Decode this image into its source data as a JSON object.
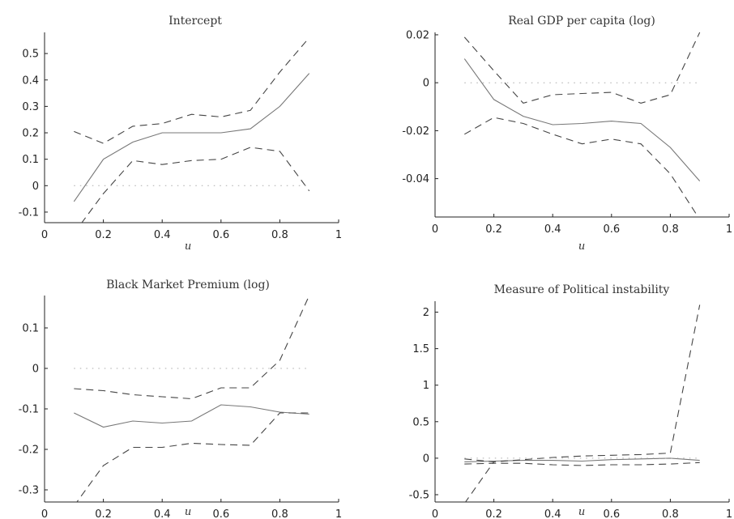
{
  "chart_data": [
    {
      "type": "line",
      "title": "Intercept",
      "xlabel": "u",
      "ylabel": "",
      "xlim": [
        0,
        1
      ],
      "ylim": [
        -0.14,
        0.58
      ],
      "xticks": [
        "0",
        "0.2",
        "0.4",
        "0.6",
        "0.8",
        "1"
      ],
      "yticks": [
        "-0.1",
        "0",
        "0.1",
        "0.2",
        "0.3",
        "0.4",
        "0.5"
      ],
      "x": [
        0.1,
        0.2,
        0.3,
        0.4,
        0.5,
        0.6,
        0.7,
        0.8,
        0.9
      ],
      "series": [
        {
          "style": "solid",
          "values": [
            -0.06,
            0.1,
            0.165,
            0.2,
            0.2,
            0.2,
            0.215,
            0.3,
            0.425
          ]
        },
        {
          "style": "dashed",
          "values": [
            0.205,
            0.16,
            0.225,
            0.235,
            0.27,
            0.26,
            0.285,
            0.43,
            0.56
          ]
        },
        {
          "style": "dashed",
          "values": [
            -0.18,
            -0.03,
            0.095,
            0.08,
            0.095,
            0.1,
            0.145,
            0.13,
            -0.02
          ]
        },
        {
          "style": "dotted",
          "values": [
            0,
            0,
            0,
            0,
            0,
            0,
            0,
            0,
            0
          ]
        }
      ]
    },
    {
      "type": "line",
      "title": "Real GDP per capita (log)",
      "xlabel": "u",
      "ylabel": "",
      "xlim": [
        0,
        1
      ],
      "ylim": [
        -0.056,
        0.021
      ],
      "xticks": [
        "0",
        "0.2",
        "0.4",
        "0.6",
        "0.8",
        "1"
      ],
      "yticks": [
        "-0.04",
        "-0.02",
        "0",
        "0.02"
      ],
      "x": [
        0.1,
        0.2,
        0.3,
        0.4,
        0.5,
        0.6,
        0.7,
        0.8,
        0.9
      ],
      "series": [
        {
          "style": "solid",
          "values": [
            0.01,
            -0.007,
            -0.014,
            -0.0175,
            -0.017,
            -0.016,
            -0.017,
            -0.027,
            -0.041
          ]
        },
        {
          "style": "dashed",
          "values": [
            0.019,
            0.005,
            -0.0085,
            -0.005,
            -0.0045,
            -0.004,
            -0.0085,
            -0.005,
            0.021
          ]
        },
        {
          "style": "dashed",
          "values": [
            -0.0215,
            -0.0145,
            -0.017,
            -0.0215,
            -0.0255,
            -0.0235,
            -0.0255,
            -0.038,
            -0.057
          ]
        },
        {
          "style": "dotted",
          "values": [
            0,
            0,
            0,
            0,
            0,
            0,
            0,
            0,
            0
          ]
        }
      ]
    },
    {
      "type": "line",
      "title": "Black Market Premium (log)",
      "xlabel": "u",
      "ylabel": "",
      "xlim": [
        0,
        1
      ],
      "ylim": [
        -0.33,
        0.18
      ],
      "xticks": [
        "0",
        "0.2",
        "0.4",
        "0.6",
        "0.8",
        "1"
      ],
      "yticks": [
        "-0.3",
        "-0.2",
        "-0.1",
        "0",
        "0.1"
      ],
      "x": [
        0.1,
        0.2,
        0.3,
        0.4,
        0.5,
        0.6,
        0.7,
        0.8,
        0.9
      ],
      "series": [
        {
          "style": "solid",
          "values": [
            -0.11,
            -0.145,
            -0.13,
            -0.135,
            -0.13,
            -0.09,
            -0.095,
            -0.108,
            -0.113
          ]
        },
        {
          "style": "dashed",
          "values": [
            -0.05,
            -0.055,
            -0.065,
            -0.07,
            -0.075,
            -0.048,
            -0.048,
            0.02,
            0.18
          ]
        },
        {
          "style": "dashed",
          "values": [
            -0.34,
            -0.24,
            -0.195,
            -0.195,
            -0.185,
            -0.188,
            -0.19,
            -0.11,
            -0.11
          ]
        },
        {
          "style": "dotted",
          "values": [
            0,
            0,
            0,
            0,
            0,
            0,
            0,
            0,
            0
          ]
        }
      ]
    },
    {
      "type": "line",
      "title": "Measure of Political instability",
      "xlabel": "u",
      "ylabel": "",
      "xlim": [
        0,
        1
      ],
      "ylim": [
        -0.6,
        2.15
      ],
      "xticks": [
        "0",
        "0.2",
        "0.4",
        "0.6",
        "0.8",
        "1"
      ],
      "yticks": [
        "-0.5",
        "0",
        "0.5",
        "1",
        "1.5",
        "2"
      ],
      "x": [
        0.1,
        0.2,
        0.3,
        0.4,
        0.5,
        0.6,
        0.7,
        0.8,
        0.9
      ],
      "series": [
        {
          "style": "solid",
          "values": [
            -0.05,
            -0.04,
            -0.03,
            -0.03,
            -0.04,
            -0.02,
            -0.01,
            0.0,
            -0.03
          ]
        },
        {
          "style": "dashed",
          "values": [
            -0.01,
            -0.05,
            -0.02,
            0.01,
            0.03,
            0.04,
            0.05,
            0.07,
            2.1
          ]
        },
        {
          "style": "dashed",
          "values": [
            -0.08,
            -0.07,
            -0.07,
            -0.09,
            -0.1,
            -0.09,
            -0.09,
            -0.08,
            -0.06
          ]
        },
        {
          "style": "dashed",
          "values": [
            -0.62,
            -0.05,
            null,
            null,
            null,
            null,
            null,
            null,
            null
          ]
        },
        {
          "style": "dotted",
          "values": [
            0,
            0,
            0,
            0,
            0,
            0,
            0,
            0,
            0
          ]
        }
      ]
    }
  ]
}
